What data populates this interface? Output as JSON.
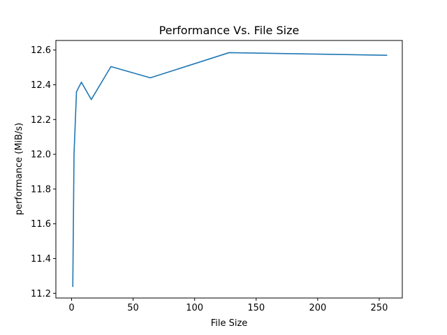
{
  "chart_data": {
    "type": "line",
    "title": "Performance Vs. File Size",
    "xlabel": "File Size",
    "ylabel": "performance (MiB/s)",
    "xlim": [
      -12.75,
      268.75
    ],
    "ylim": [
      11.173,
      12.655
    ],
    "xticks": [
      0,
      50,
      100,
      150,
      200,
      250
    ],
    "xtick_labels": [
      "0",
      "50",
      "100",
      "150",
      "200",
      "250"
    ],
    "yticks": [
      11.2,
      11.4,
      11.6,
      11.8,
      12.0,
      12.2,
      12.4,
      12.6
    ],
    "ytick_labels": [
      "11.2",
      "11.4",
      "11.6",
      "11.8",
      "12.0",
      "12.2",
      "12.4",
      "12.6"
    ],
    "grid": false,
    "legend": "none",
    "series": [
      {
        "color": "#1f77b4",
        "x": [
          1,
          2,
          3,
          4,
          8,
          16,
          32,
          64,
          128,
          256
        ],
        "y": [
          11.24,
          12.0,
          12.18,
          12.36,
          12.415,
          12.315,
          12.505,
          12.44,
          12.585,
          12.57
        ]
      }
    ]
  }
}
